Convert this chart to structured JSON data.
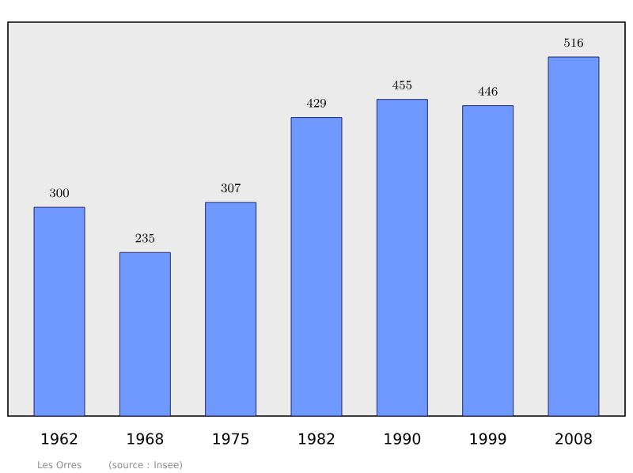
{
  "chart_data": {
    "type": "bar",
    "categories": [
      "1962",
      "1968",
      "1975",
      "1982",
      "1990",
      "1999",
      "2008"
    ],
    "values": [
      300,
      235,
      307,
      429,
      455,
      446,
      516
    ],
    "color": "#7099ff",
    "data_labels": true,
    "annotations": [
      "Les Orres",
      "(source : Insee)"
    ]
  }
}
